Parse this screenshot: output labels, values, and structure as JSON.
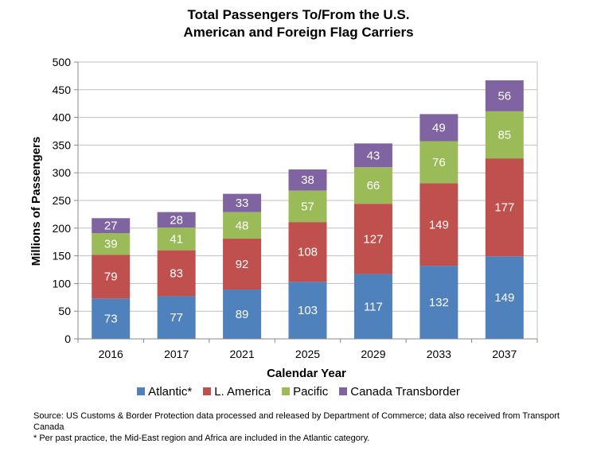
{
  "title_lines": [
    "Total Passengers To/From the U.S.",
    "American and Foreign Flag Carriers"
  ],
  "colors": {
    "Atlantic*": "#4f81bd",
    "L. America": "#c0504d",
    "Pacific": "#9bbb59",
    "Canada Transborder": "#8064a2",
    "grid": "#bfbfbf",
    "axis": "#888888"
  },
  "chart_data": {
    "type": "bar",
    "stacked": true,
    "title": "Total Passengers To/From the U.S. American and Foreign Flag Carriers",
    "xlabel": "Calendar Year",
    "ylabel": "Millions of Passengers",
    "ylim": [
      0,
      500
    ],
    "yticks": [
      0,
      50,
      100,
      150,
      200,
      250,
      300,
      350,
      400,
      450,
      500
    ],
    "grid": true,
    "legend_position": "bottom",
    "categories": [
      "2016",
      "2017",
      "2021",
      "2025",
      "2029",
      "2033",
      "2037"
    ],
    "series": [
      {
        "name": "Atlantic*",
        "values": [
          73,
          77,
          89,
          103,
          117,
          132,
          149
        ]
      },
      {
        "name": "L. America",
        "values": [
          79,
          83,
          92,
          108,
          127,
          149,
          177
        ]
      },
      {
        "name": "Pacific",
        "values": [
          39,
          41,
          48,
          57,
          66,
          76,
          85
        ]
      },
      {
        "name": "Canada Transborder",
        "values": [
          27,
          28,
          33,
          38,
          43,
          49,
          56
        ]
      }
    ]
  },
  "notes": [
    "Source:  US Customs & Border Protection data processed and released by Department of Commerce; data also received from Transport Canada",
    "* Per past practice, the Mid-East region and Africa are included in the Atlantic category."
  ]
}
